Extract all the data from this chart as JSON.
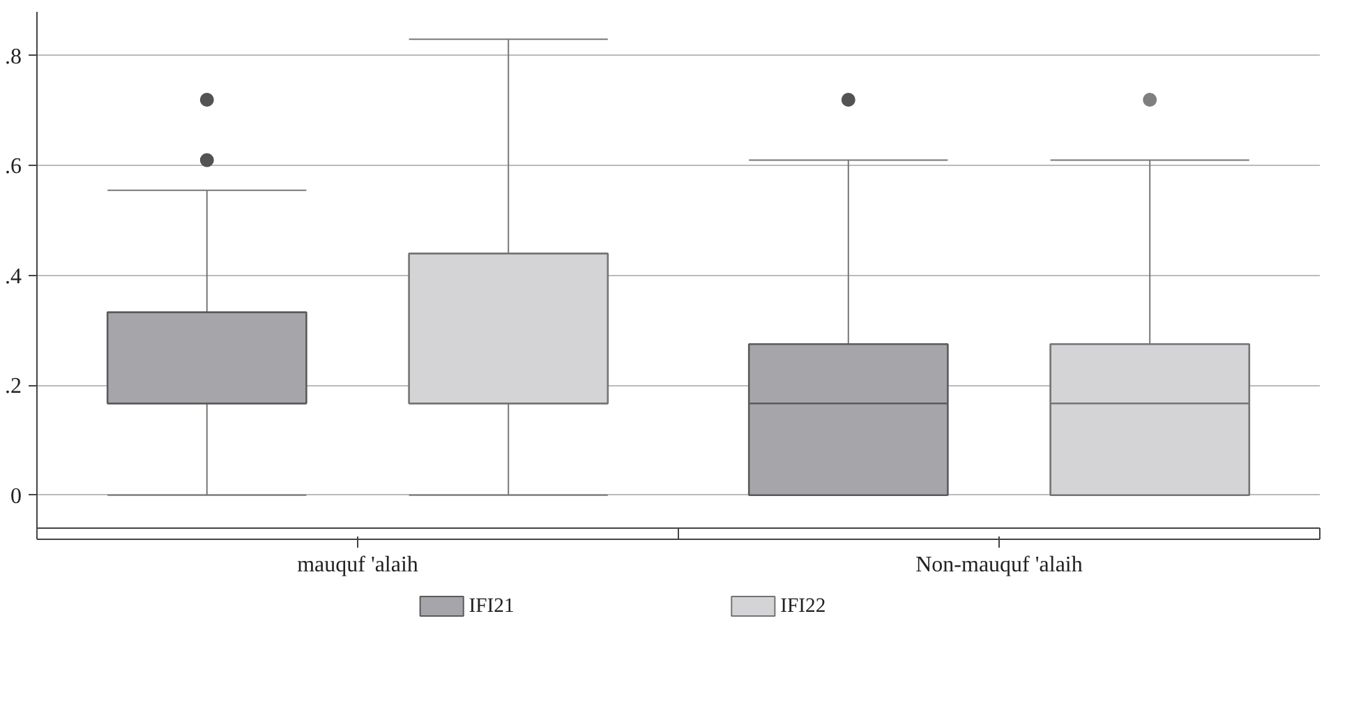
{
  "chart_data": {
    "type": "box",
    "categories": [
      "mauquf 'alaih",
      "Non-mauquf 'alaih"
    ],
    "series": [
      {
        "name": "IFI21",
        "color": "#a6a6aa",
        "boxes": [
          {
            "low": 0,
            "q1": 0.167,
            "median": 0.167,
            "q3": 0.333,
            "high": 0.555,
            "outliers": [
              0.61,
              0.72
            ]
          },
          {
            "low": 0,
            "q1": 0,
            "median": 0.167,
            "q3": 0.275,
            "high": 0.61,
            "outliers": [
              0.72
            ]
          }
        ]
      },
      {
        "name": "IFI22",
        "color": "#d4d4d6",
        "boxes": [
          {
            "low": 0,
            "q1": 0.167,
            "median": 0.167,
            "q3": 0.44,
            "high": 0.83
          },
          {
            "low": 0,
            "q1": 0,
            "median": 0.167,
            "q3": 0.275,
            "high": 0.61,
            "outliers": [
              0.72
            ]
          }
        ]
      }
    ],
    "ylim": [
      -0.06,
      0.88
    ],
    "yticks": [
      {
        "value": 0,
        "label": "0"
      },
      {
        "value": 0.2,
        "label": ".2"
      },
      {
        "value": 0.4,
        "label": ".4"
      },
      {
        "value": 0.6,
        "label": ".6"
      },
      {
        "value": 0.8,
        "label": ".8"
      }
    ],
    "grid": "y",
    "legend": "bottom"
  }
}
